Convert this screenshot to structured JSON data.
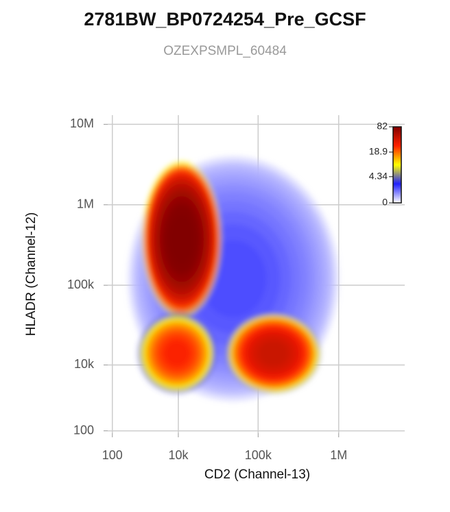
{
  "chart_data": {
    "type": "density",
    "title": "2781BW_BP0724254_Pre_GCSF",
    "subtitle": "OZEXPSMPL_60484",
    "x_label": "CD2 (Channel-13)",
    "y_label": "HLADR (Channel-12)",
    "xlim": [
      -300,
      6600000
    ],
    "xticks": [
      100,
      {
        "value": 10000,
        "label": "10k"
      },
      {
        "value": 100000,
        "label": "100k"
      },
      {
        "value": 1000000,
        "label": "1M"
      }
    ],
    "ylim": [
      -100,
      13000000
    ],
    "yticks": [
      100,
      {
        "value": 10000,
        "label": "10k"
      },
      {
        "value": 100000,
        "label": "100k"
      },
      {
        "value": 1000000,
        "label": "1M"
      },
      {
        "value": 10000000,
        "label": "10M"
      }
    ],
    "grid": true,
    "clusters": [
      {
        "x": [
          1500,
          1000000
        ],
        "y": [
          3000,
          4000000
        ],
        "peak": 1.5
      },
      {
        "x": [
          3000,
          35000
        ],
        "y": [
          40000,
          3500000
        ],
        "peak": 82
      },
      {
        "x": [
          2500,
          30000
        ],
        "y": [
          4000,
          45000
        ],
        "peak": 25
      },
      {
        "x": [
          40000,
          600000
        ],
        "y": [
          4000,
          45000
        ],
        "peak": 40
      }
    ],
    "colorbar": {
      "lim": [
        0,
        82
      ],
      "ticks": [
        0,
        4.34,
        18.9,
        82
      ],
      "colors": [
        "#ffffff",
        "#2020ff",
        "#ffff00",
        "#ff2000",
        "#800000"
      ]
    }
  }
}
